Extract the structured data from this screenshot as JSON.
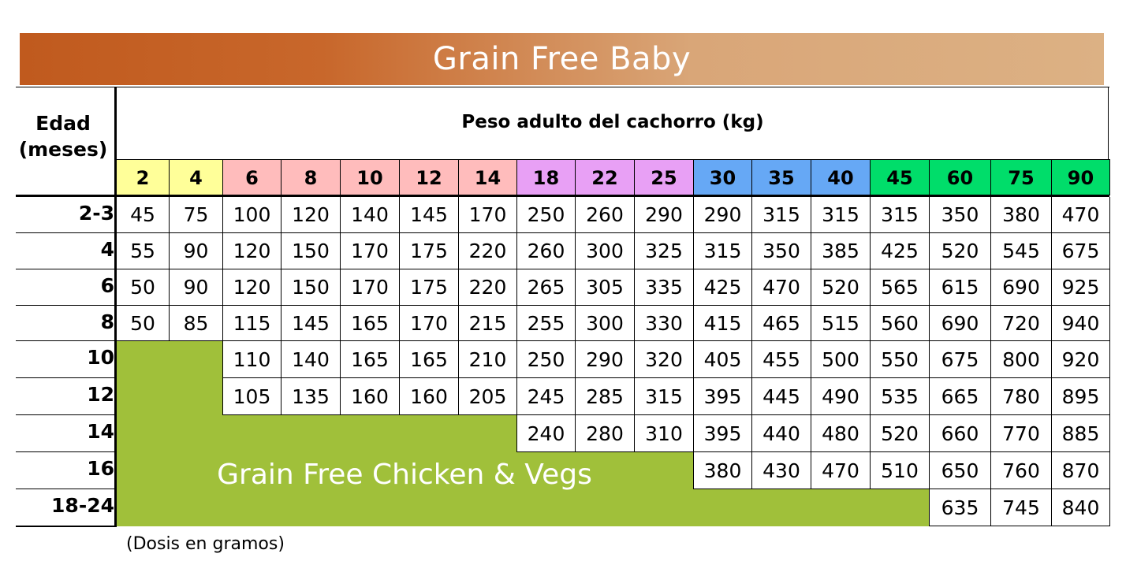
{
  "title": "Grain Free Baby",
  "age_header": "Edad\n(meses)",
  "age_header_lines": [
    "Edad",
    "(meses)"
  ],
  "weight_header": "Peso adulto del cachorro (kg)",
  "weights": [
    {
      "label": "2",
      "color": "#ffff99"
    },
    {
      "label": "4",
      "color": "#ffff99"
    },
    {
      "label": "6",
      "color": "#ffbcbc"
    },
    {
      "label": "8",
      "color": "#ffbcbc"
    },
    {
      "label": "10",
      "color": "#ffbcbc"
    },
    {
      "label": "12",
      "color": "#ffbcbc"
    },
    {
      "label": "14",
      "color": "#ffbcbc"
    },
    {
      "label": "18",
      "color": "#e8a0f5"
    },
    {
      "label": "22",
      "color": "#e8a0f5"
    },
    {
      "label": "25",
      "color": "#e8a0f5"
    },
    {
      "label": "30",
      "color": "#66a8f5"
    },
    {
      "label": "35",
      "color": "#66a8f5"
    },
    {
      "label": "40",
      "color": "#66a8f5"
    },
    {
      "label": "45",
      "color": "#00dd6a"
    },
    {
      "label": "60",
      "color": "#00dd6a"
    },
    {
      "label": "75",
      "color": "#00dd6a"
    },
    {
      "label": "90",
      "color": "#00dd6a"
    }
  ],
  "rows": [
    {
      "age": "2-3",
      "values": [
        "45",
        "75",
        "100",
        "120",
        "140",
        "145",
        "170",
        "250",
        "260",
        "290",
        "290",
        "315",
        "315",
        "315",
        "350",
        "380",
        "470"
      ]
    },
    {
      "age": "4",
      "values": [
        "55",
        "90",
        "120",
        "150",
        "170",
        "175",
        "220",
        "260",
        "300",
        "325",
        "315",
        "350",
        "385",
        "425",
        "520",
        "545",
        "675"
      ]
    },
    {
      "age": "6",
      "values": [
        "50",
        "90",
        "120",
        "150",
        "170",
        "175",
        "220",
        "265",
        "305",
        "335",
        "425",
        "470",
        "520",
        "565",
        "615",
        "690",
        "925"
      ]
    },
    {
      "age": "8",
      "values": [
        "50",
        "85",
        "115",
        "145",
        "165",
        "170",
        "215",
        "255",
        "300",
        "330",
        "415",
        "465",
        "515",
        "560",
        "690",
        "720",
        "940"
      ]
    },
    {
      "age": "10",
      "values": [
        "",
        "",
        "110",
        "140",
        "165",
        "165",
        "210",
        "250",
        "290",
        "320",
        "405",
        "455",
        "500",
        "550",
        "675",
        "800",
        "920"
      ]
    },
    {
      "age": "12",
      "values": [
        "",
        "",
        "105",
        "135",
        "160",
        "160",
        "205",
        "245",
        "285",
        "315",
        "395",
        "445",
        "490",
        "535",
        "665",
        "780",
        "895"
      ]
    },
    {
      "age": "14",
      "values": [
        "",
        "",
        "",
        "",
        "",
        "",
        "",
        "240",
        "280",
        "310",
        "395",
        "440",
        "480",
        "520",
        "660",
        "770",
        "885"
      ]
    },
    {
      "age": "16",
      "values": [
        "",
        "",
        "",
        "",
        "",
        "",
        "",
        "",
        "",
        "",
        "380",
        "430",
        "470",
        "510",
        "650",
        "760",
        "870"
      ]
    },
    {
      "age": "18-24",
      "values": [
        "",
        "",
        "",
        "",
        "",
        "",
        "",
        "",
        "",
        "",
        "",
        "",
        "",
        "",
        "635",
        "745",
        "840"
      ]
    }
  ],
  "overlay_label": "Grain Free Chicken & Vegs",
  "overlay_color": "#a0c03a",
  "footnote": "(Dosis en gramos)"
}
